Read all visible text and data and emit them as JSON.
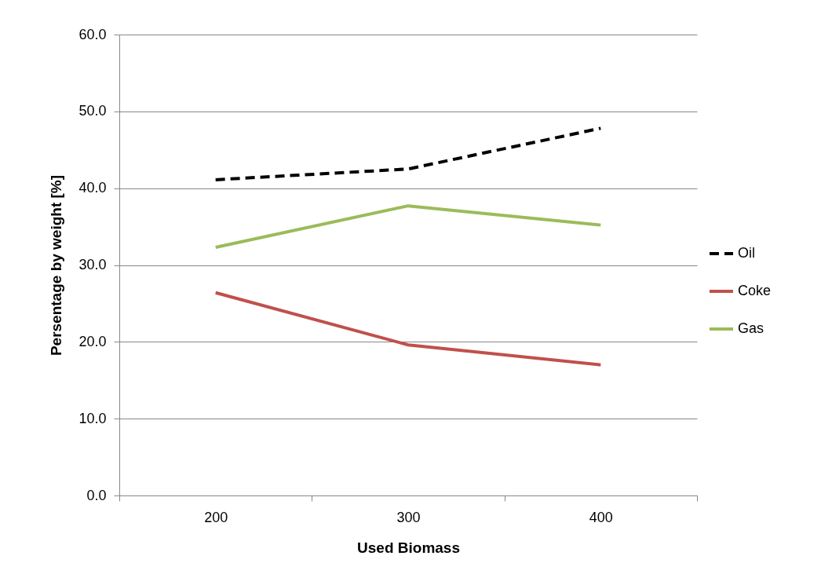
{
  "chart_data": {
    "type": "line",
    "xlabel": "Used Biomass",
    "ylabel": "Persentage by weight [%]",
    "categories": [
      "200",
      "300",
      "400"
    ],
    "series": [
      {
        "name": "Oil",
        "color": "#000000",
        "line_style": "dashed",
        "values": [
          41.1,
          42.5,
          47.8
        ]
      },
      {
        "name": "Coke",
        "color": "#c0504d",
        "line_style": "solid",
        "values": [
          26.4,
          19.6,
          17.0
        ]
      },
      {
        "name": "Gas",
        "color": "#9bbb59",
        "line_style": "solid",
        "values": [
          32.3,
          37.7,
          35.2
        ]
      }
    ],
    "ylim": [
      0,
      60
    ],
    "yticks": [
      {
        "value": 0,
        "label": "0.0"
      },
      {
        "value": 10,
        "label": "10.0"
      },
      {
        "value": 20,
        "label": "20.0"
      },
      {
        "value": 30,
        "label": "30.0"
      },
      {
        "value": 40,
        "label": "40.0"
      },
      {
        "value": 50,
        "label": "50.0"
      },
      {
        "value": 60,
        "label": "60.0"
      }
    ],
    "grid": "y",
    "legend": "right",
    "marker": "none"
  }
}
